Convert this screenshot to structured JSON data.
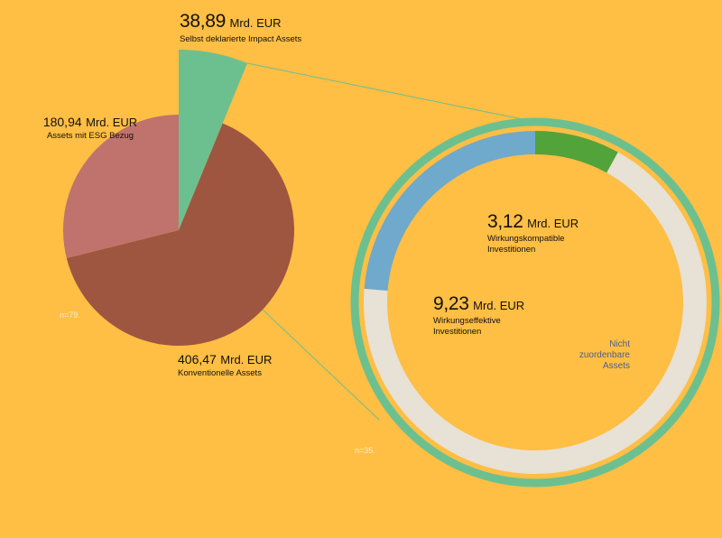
{
  "chart_data": [
    {
      "type": "pie",
      "slices": [
        {
          "label": "Selbst deklarierte Impact Assets",
          "value": 38.89,
          "value_label": "38,89",
          "unit": "Mrd. EUR",
          "color": "#6CC08F"
        },
        {
          "label": "Konventionelle Assets",
          "value": 406.47,
          "value_label": "406,47",
          "unit": "Mrd. EUR",
          "color": "#9E5640"
        },
        {
          "label": "Assets mit ESG Bezug",
          "value": 180.94,
          "value_label": "180,94",
          "unit": "Mrd. EUR",
          "color": "#BF736C"
        }
      ],
      "note": "n=79."
    },
    {
      "type": "pie",
      "style": "donut",
      "total": 38.89,
      "slices": [
        {
          "label": "Wirkungskompatible Investitionen",
          "value": 3.12,
          "value_label": "3,12",
          "unit": "Mrd. EUR",
          "color": "#52A33A"
        },
        {
          "label": "Nicht zuordenbare Assets",
          "value": 26.54,
          "value_label": "",
          "unit": "",
          "color": "#E7E1D6"
        },
        {
          "label": "Wirkungseffektive Investitionen",
          "value": 9.23,
          "value_label": "9,23",
          "unit": "Mrd. EUR",
          "color": "#6FA9CC"
        }
      ],
      "outer_ring_color": "#6CC08F",
      "note": "n=35."
    }
  ],
  "labels": {
    "impact": {
      "value": "38,89",
      "unit": "Mrd. EUR",
      "name": "Selbst deklarierte Impact Assets"
    },
    "esg": {
      "value": "180,94",
      "unit": "Mrd. EUR",
      "name": "Assets mit ESG Bezug"
    },
    "conv": {
      "value": "406,47",
      "unit": "Mrd. EUR",
      "name": "Konventionelle Assets"
    },
    "compat": {
      "value": "3,12",
      "unit": "Mrd. EUR",
      "name_line1": "Wirkungskompatible",
      "name_line2": "Investitionen"
    },
    "effect": {
      "value": "9,23",
      "unit": "Mrd. EUR",
      "name_line1": "Wirkungseffektive",
      "name_line2": "Investitionen"
    },
    "unassigned": {
      "line1": "Nicht",
      "line2": "zuordenbare",
      "line3": "Assets"
    },
    "n_left": "n=79.",
    "n_right": "n=35."
  },
  "colors": {
    "background": "#FFBE44",
    "connector": "#6CC08F"
  }
}
